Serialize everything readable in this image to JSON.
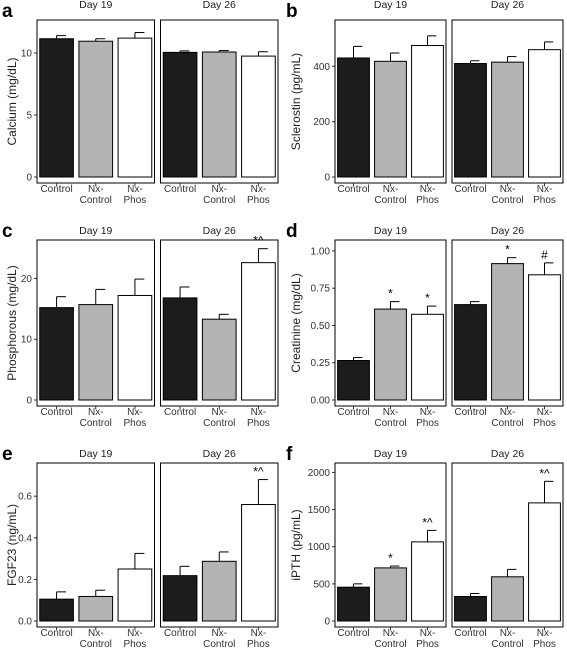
{
  "chart_data": [
    {
      "letter": "a",
      "type": "bar",
      "ylabel": "Calcium (mg/dL)",
      "ylim": [
        0,
        12.5
      ],
      "yticks": [
        0,
        5,
        10
      ],
      "facets": [
        "Day 19",
        "Day 26"
      ],
      "categories": [
        "Control",
        "Nx-\nControl",
        "Nx-\nPhos"
      ],
      "values": [
        [
          11.15,
          10.95,
          11.2
        ],
        [
          10.05,
          10.08,
          9.75
        ]
      ],
      "errors": [
        [
          0.25,
          0.2,
          0.45
        ],
        [
          0.12,
          0.12,
          0.35
        ]
      ],
      "annotations": [
        [
          "",
          "",
          ""
        ],
        [
          "",
          "",
          ""
        ]
      ]
    },
    {
      "letter": "b",
      "type": "bar",
      "ylabel": "Sclerostin (pg/mL)",
      "ylim": [
        0,
        560
      ],
      "yticks": [
        0,
        200,
        400
      ],
      "facets": [
        "Day 19",
        "Day 26"
      ],
      "categories": [
        "Control",
        "Nx-\nControl",
        "Nx-\nPhos"
      ],
      "values": [
        [
          430,
          418,
          475
        ],
        [
          410,
          415,
          460
        ]
      ],
      "errors": [
        [
          42,
          30,
          35
        ],
        [
          10,
          20,
          28
        ]
      ],
      "annotations": [
        [
          "",
          "",
          ""
        ],
        [
          "",
          "",
          ""
        ]
      ]
    },
    {
      "letter": "c",
      "type": "bar",
      "ylabel": "Phosphorous (mg/dL)",
      "ylim": [
        0,
        26
      ],
      "yticks": [
        0,
        10,
        20
      ],
      "facets": [
        "Day 19",
        "Day 26"
      ],
      "categories": [
        "Control",
        "Nx-\nControl",
        "Nx-\nPhos"
      ],
      "values": [
        [
          15.2,
          15.7,
          17.2
        ],
        [
          16.8,
          13.3,
          22.6
        ]
      ],
      "errors": [
        [
          1.8,
          2.5,
          2.7
        ],
        [
          1.8,
          0.8,
          2.3
        ]
      ],
      "annotations": [
        [
          "",
          "",
          ""
        ],
        [
          "",
          "",
          "*^"
        ]
      ]
    },
    {
      "letter": "d",
      "type": "bar",
      "ylabel": "Creatinine (mg/dL)",
      "ylim": [
        0,
        1.06
      ],
      "yticks": [
        0,
        0.25,
        0.5,
        0.75,
        1.0
      ],
      "ytick_labels": [
        "0.00",
        "0.25",
        "0.50",
        "0.75",
        "1.00"
      ],
      "facets": [
        "Day 19",
        "Day 26"
      ],
      "categories": [
        "Control",
        "Nx-\nControl",
        "Nx-\nPhos"
      ],
      "values": [
        [
          0.265,
          0.61,
          0.575
        ],
        [
          0.64,
          0.915,
          0.84
        ]
      ],
      "errors": [
        [
          0.02,
          0.05,
          0.055
        ],
        [
          0.02,
          0.04,
          0.08
        ]
      ],
      "annotations": [
        [
          "",
          "*",
          "*"
        ],
        [
          "",
          "*",
          "#"
        ]
      ]
    },
    {
      "letter": "e",
      "type": "bar",
      "ylabel": "FGF23 (ng/mL)",
      "ylim": [
        0,
        0.75
      ],
      "yticks": [
        0,
        0.2,
        0.4,
        0.6
      ],
      "ytick_labels": [
        "0.0",
        "0.2",
        "0.4",
        "0.6"
      ],
      "facets": [
        "Day 19",
        "Day 26"
      ],
      "categories": [
        "Control",
        "Nx-\nControl",
        "Nx-\nPhos"
      ],
      "values": [
        [
          0.105,
          0.118,
          0.25
        ],
        [
          0.218,
          0.287,
          0.56
        ]
      ],
      "errors": [
        [
          0.035,
          0.03,
          0.075
        ],
        [
          0.045,
          0.045,
          0.12
        ]
      ],
      "annotations": [
        [
          "",
          "",
          ""
        ],
        [
          "",
          "",
          "*^"
        ]
      ]
    },
    {
      "letter": "f",
      "type": "bar",
      "ylabel": "iPTH (pg/mL)",
      "ylim": [
        0,
        2100
      ],
      "yticks": [
        0,
        500,
        1000,
        1500,
        2000
      ],
      "facets": [
        "Day 19",
        "Day 26"
      ],
      "categories": [
        "Control",
        "Nx-\nControl",
        "Nx-\nPhos"
      ],
      "values": [
        [
          455,
          715,
          1065
        ],
        [
          330,
          595,
          1590
        ]
      ],
      "errors": [
        [
          45,
          25,
          155
        ],
        [
          40,
          100,
          290
        ]
      ],
      "annotations": [
        [
          "",
          "*",
          "*^"
        ],
        [
          "",
          "",
          "*^"
        ]
      ]
    }
  ],
  "colors": {
    "bars": [
      "#1c1c1c",
      "#b4b4b4",
      "#ffffff"
    ],
    "outline": "#000000"
  }
}
